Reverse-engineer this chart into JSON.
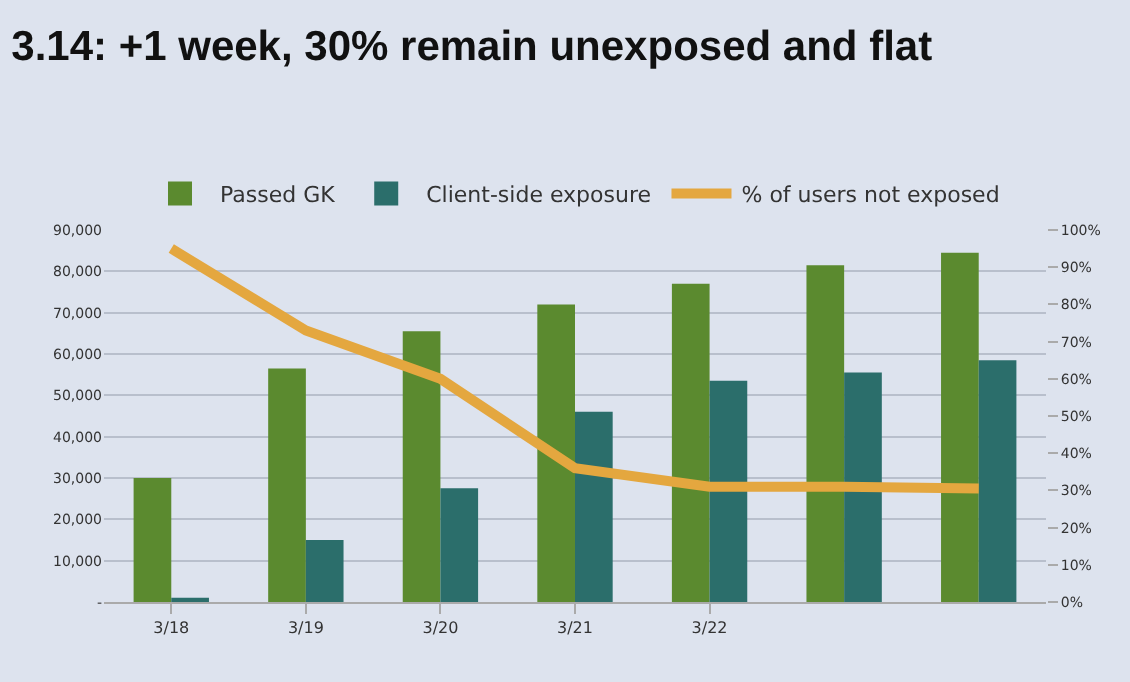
{
  "chart_data": {
    "type": "bar",
    "title": "3.14: +1 week, 30% remain unexposed and flat",
    "categories": [
      "3/18",
      "3/19",
      "3/20",
      "3/21",
      "3/22",
      null,
      null
    ],
    "series": [
      {
        "name": "Passed GK",
        "color": "#5b8a2f",
        "values": [
          30000,
          56500,
          65500,
          72000,
          77000,
          81500,
          84500
        ]
      },
      {
        "name": "Client-side exposure",
        "color": "#2b6e6b",
        "values": [
          1000,
          15000,
          27500,
          46000,
          53500,
          55500,
          58500
        ]
      },
      {
        "name": "% of users not exposed",
        "type": "line",
        "axis": "y2",
        "color": "#e4a73f",
        "values": [
          95,
          73,
          60,
          36,
          31,
          31,
          30.5
        ]
      }
    ],
    "ylim": [
      0,
      90000
    ],
    "yticks": [
      {
        "value": 0,
        "label": "-"
      },
      {
        "value": 10000,
        "label": "10,000"
      },
      {
        "value": 20000,
        "label": "20,000"
      },
      {
        "value": 30000,
        "label": "30,000"
      },
      {
        "value": 40000,
        "label": "40,000"
      },
      {
        "value": 50000,
        "label": "50,000"
      },
      {
        "value": 60000,
        "label": "60,000"
      },
      {
        "value": 70000,
        "label": "70,000"
      },
      {
        "value": 80000,
        "label": "80,000"
      },
      {
        "value": 90000,
        "label": "90,000"
      }
    ],
    "y2lim": [
      0,
      100
    ],
    "y2ticks": [
      {
        "value": 0,
        "label": "0%"
      },
      {
        "value": 10,
        "label": "10%"
      },
      {
        "value": 20,
        "label": "20%"
      },
      {
        "value": 30,
        "label": "30%"
      },
      {
        "value": 40,
        "label": "40%"
      },
      {
        "value": 50,
        "label": "50%"
      },
      {
        "value": 60,
        "label": "60%"
      },
      {
        "value": 70,
        "label": "70%"
      },
      {
        "value": 80,
        "label": "80%"
      },
      {
        "value": 90,
        "label": "90%"
      },
      {
        "value": 100,
        "label": "100%"
      }
    ],
    "grid": "y",
    "legend": "top",
    "marker": "none",
    "line_style": "solid"
  }
}
